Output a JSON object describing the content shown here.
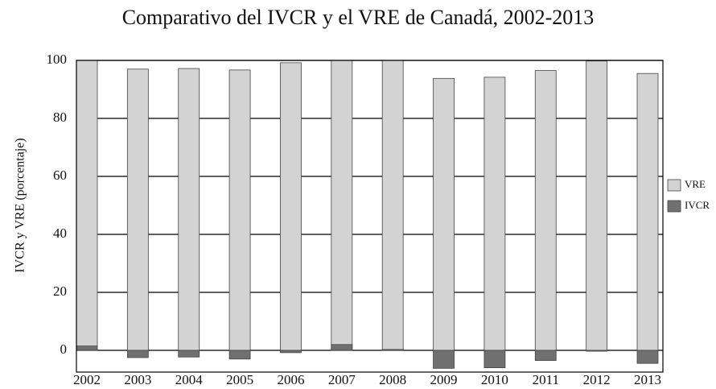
{
  "chart_data": {
    "type": "bar",
    "title": "Comparativo del IVCR y el VRE de Canadá, 2002-2013",
    "y_label": "IVCR y VRE (porcentaje)",
    "categories": [
      "2002",
      "2003",
      "2004",
      "2005",
      "2006",
      "2007",
      "2008",
      "2009",
      "2010",
      "2011",
      "2012",
      "2013"
    ],
    "series": [
      {
        "name": "VRE",
        "color": "#d3d3d3",
        "values": [
          100,
          97,
          97.2,
          96.7,
          99.2,
          100,
          100,
          93.8,
          94.2,
          96.5,
          99.8,
          95.5
        ]
      },
      {
        "name": "IVCR",
        "color": "#707070",
        "values": [
          1.5,
          -2.5,
          -2.3,
          -3,
          -0.8,
          2,
          0.3,
          -6.2,
          -6,
          -3.5,
          -0.3,
          -4.5
        ]
      }
    ],
    "ylim": [
      -7.5,
      100
    ],
    "yticks": [
      0,
      20,
      40,
      60,
      80,
      100
    ],
    "grid": true,
    "legend": "right"
  }
}
